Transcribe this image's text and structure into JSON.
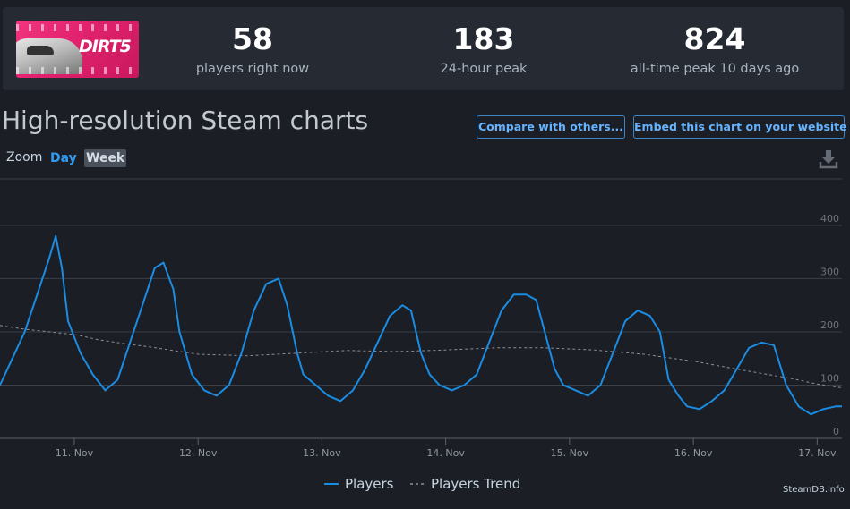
{
  "stats": [
    {
      "value": "58",
      "label": "players right now"
    },
    {
      "value": "183",
      "label": "24-hour peak"
    },
    {
      "value": "824",
      "label": "all-time peak 10 days ago"
    }
  ],
  "game_logo_text": "DIRT5",
  "page_title": "High-resolution Steam charts",
  "buttons": {
    "compare": "Compare with others...",
    "embed": "Embed this chart on your website"
  },
  "zoom": {
    "label": "Zoom",
    "options": [
      "Day",
      "Week"
    ],
    "selected": "Week"
  },
  "icons": {
    "download": "download-icon"
  },
  "credit": "SteamDB.info",
  "colors": {
    "players": "#1a8ce2",
    "trend": "#8c9196",
    "grid": "#3a3f48"
  },
  "chart_data": {
    "type": "line",
    "x_tick_labels": [
      "11. Nov",
      "12. Nov",
      "13. Nov",
      "14. Nov",
      "15. Nov",
      "16. Nov",
      "17. Nov"
    ],
    "y_tick_labels": [
      "0",
      "100",
      "200",
      "300",
      "400"
    ],
    "ylim": [
      0,
      420
    ],
    "xlim": [
      10.4,
      17.2
    ],
    "grid": true,
    "legend_position": "bottom-center",
    "series": [
      {
        "name": "Players",
        "style": "solid",
        "x": [
          10.4,
          10.5,
          10.6,
          10.7,
          10.8,
          10.85,
          10.9,
          10.95,
          11.05,
          11.15,
          11.25,
          11.35,
          11.45,
          11.55,
          11.65,
          11.72,
          11.8,
          11.85,
          11.9,
          11.95,
          12.05,
          12.15,
          12.25,
          12.35,
          12.45,
          12.55,
          12.65,
          12.72,
          12.8,
          12.85,
          12.9,
          12.95,
          13.05,
          13.15,
          13.25,
          13.35,
          13.45,
          13.55,
          13.65,
          13.72,
          13.8,
          13.87,
          13.95,
          14.05,
          14.15,
          14.25,
          14.35,
          14.45,
          14.55,
          14.65,
          14.73,
          14.8,
          14.88,
          14.95,
          15.05,
          15.15,
          15.25,
          15.35,
          15.45,
          15.55,
          15.65,
          15.73,
          15.8,
          15.88,
          15.95,
          16.05,
          16.15,
          16.25,
          16.35,
          16.45,
          16.55,
          16.65,
          16.75,
          16.85,
          16.95,
          17.05,
          17.15,
          17.2
        ],
        "y": [
          100,
          150,
          200,
          270,
          340,
          380,
          320,
          220,
          160,
          120,
          90,
          110,
          180,
          250,
          320,
          330,
          280,
          200,
          160,
          120,
          90,
          80,
          100,
          160,
          240,
          290,
          300,
          250,
          160,
          120,
          110,
          100,
          80,
          70,
          90,
          130,
          180,
          230,
          250,
          240,
          160,
          120,
          100,
          90,
          100,
          120,
          180,
          240,
          270,
          270,
          260,
          200,
          130,
          100,
          90,
          80,
          100,
          160,
          220,
          240,
          230,
          200,
          110,
          80,
          60,
          55,
          70,
          90,
          130,
          170,
          180,
          175,
          100,
          60,
          45,
          55,
          60,
          60
        ]
      },
      {
        "name": "Players Trend",
        "style": "dashed",
        "x": [
          10.4,
          10.6,
          10.8,
          11.0,
          11.2,
          11.4,
          11.6,
          11.8,
          12.0,
          12.4,
          12.8,
          13.2,
          13.6,
          14.0,
          14.4,
          14.8,
          15.2,
          15.6,
          16.0,
          16.4,
          16.8,
          17.0,
          17.2
        ],
        "y": [
          212,
          205,
          200,
          195,
          185,
          178,
          172,
          165,
          158,
          155,
          160,
          165,
          163,
          166,
          170,
          170,
          166,
          158,
          145,
          128,
          112,
          102,
          95
        ]
      }
    ]
  }
}
